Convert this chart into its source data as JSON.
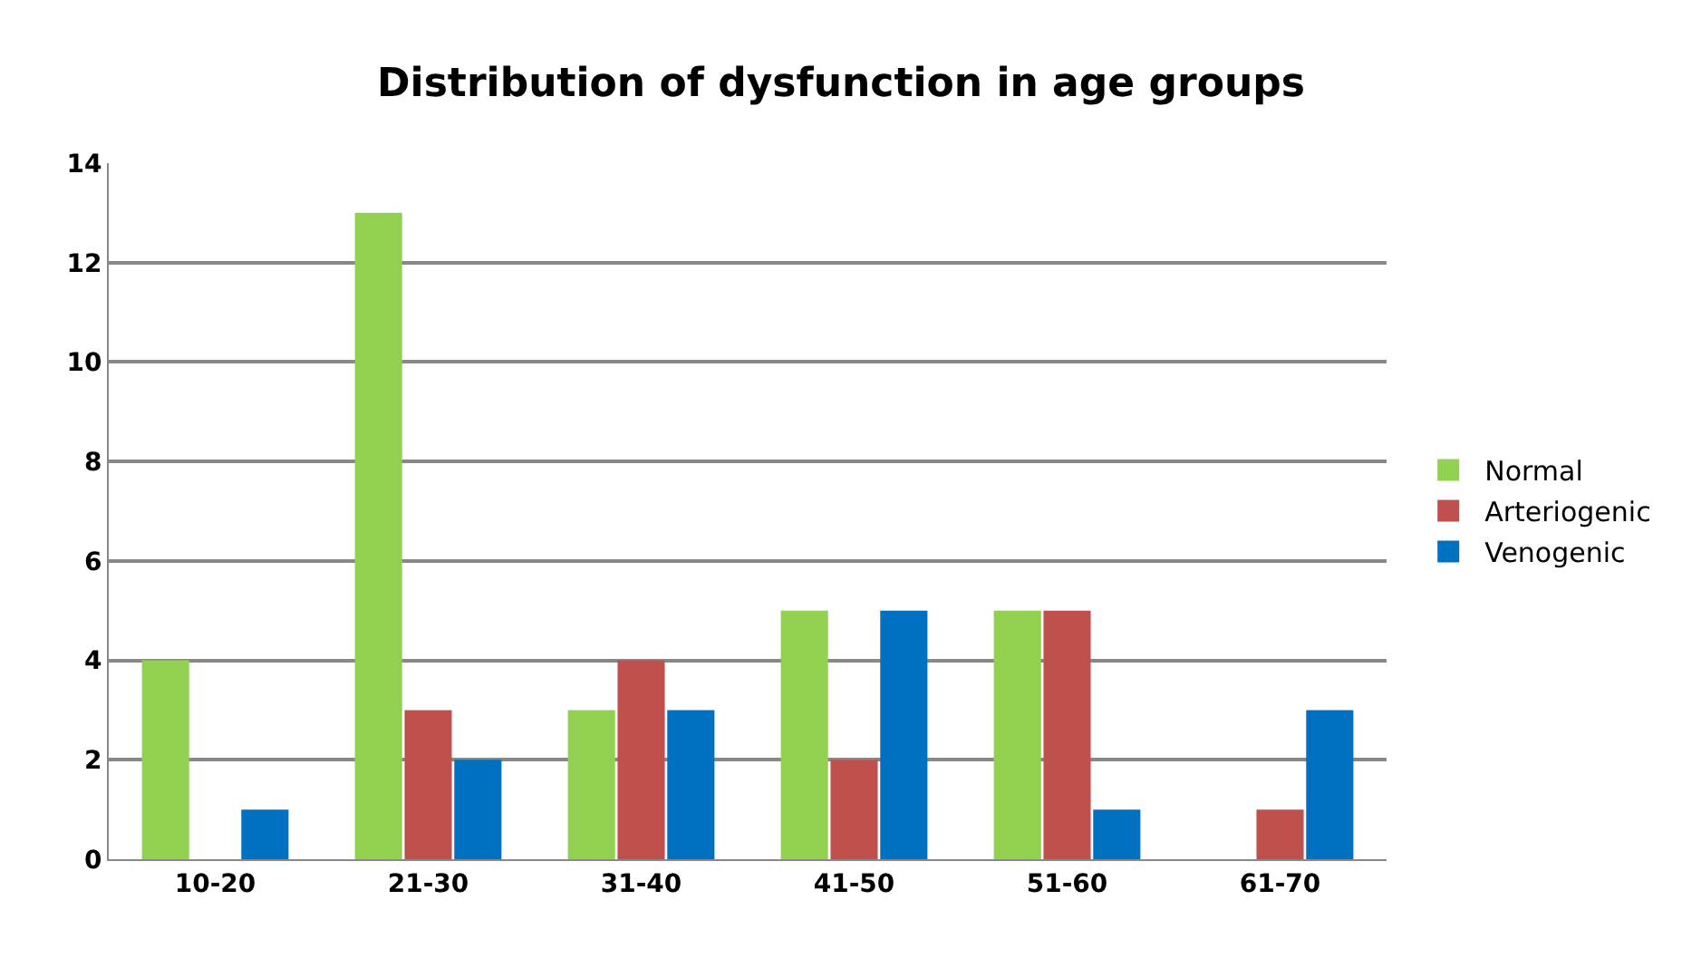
{
  "chart_data": {
    "type": "bar",
    "title": "Distribution of dysfunction in age groups",
    "categories": [
      "10-20",
      "21-30",
      "31-40",
      "41-50",
      "51-60",
      "61-70"
    ],
    "series": [
      {
        "name": "Normal",
        "color": "#92d050",
        "values": [
          4,
          13,
          3,
          5,
          5,
          0
        ]
      },
      {
        "name": "Arteriogenic",
        "color": "#c0504d",
        "values": [
          0,
          3,
          4,
          2,
          5,
          1
        ]
      },
      {
        "name": "Venogenic",
        "color": "#0070c0",
        "values": [
          1,
          2,
          3,
          5,
          1,
          3
        ]
      }
    ],
    "ylim": [
      0,
      14
    ],
    "yticks": [
      0,
      2,
      4,
      6,
      8,
      10,
      12,
      14
    ],
    "grid": "y",
    "legend": "right"
  }
}
